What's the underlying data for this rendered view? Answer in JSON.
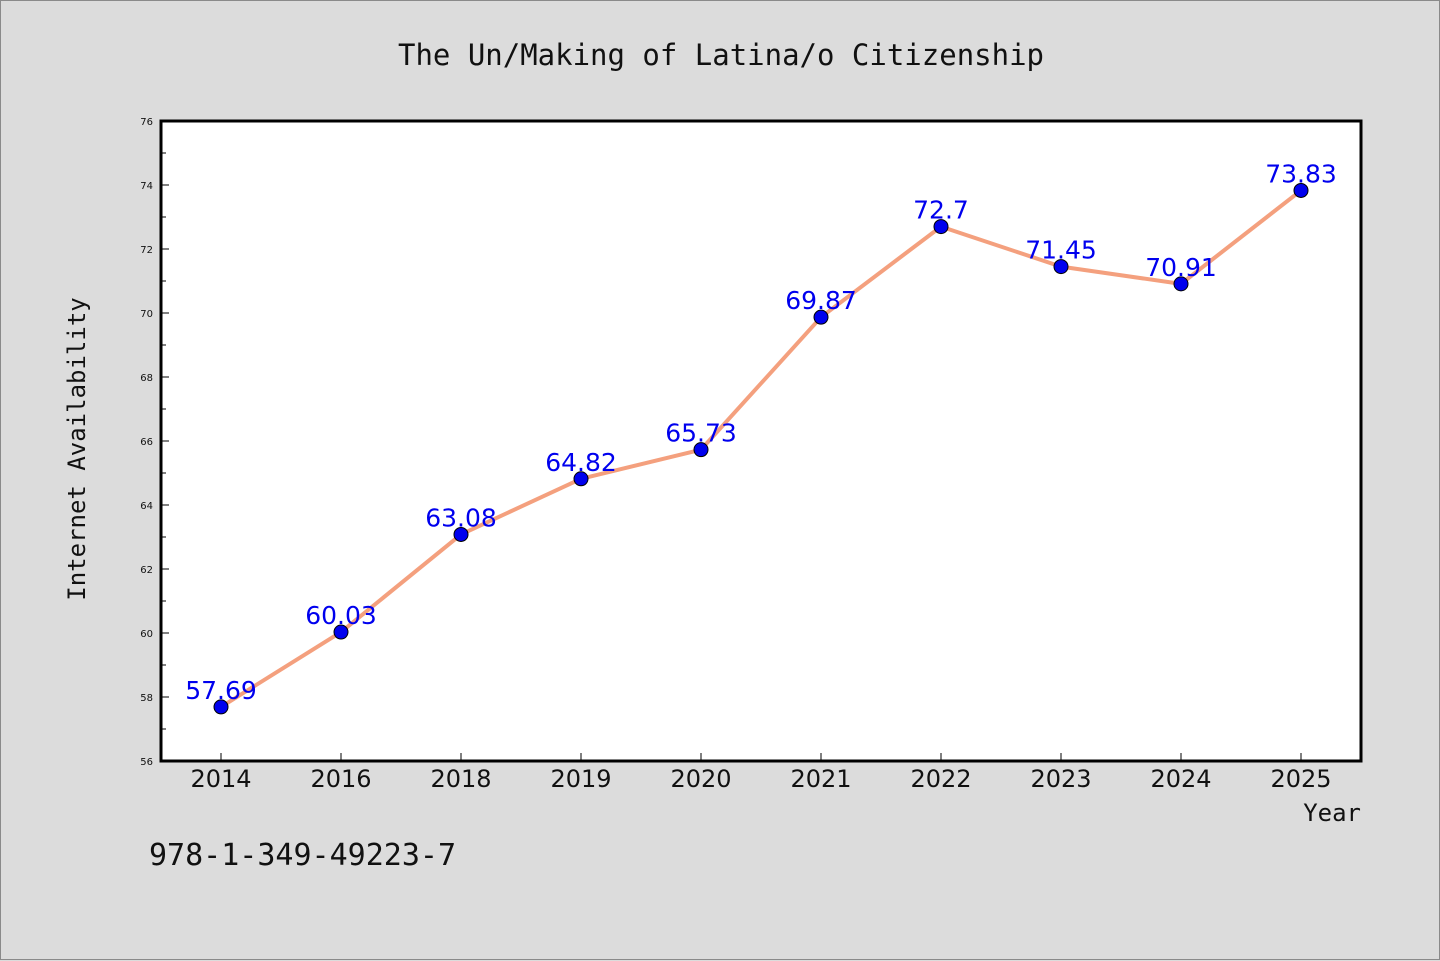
{
  "chart_data": {
    "type": "line",
    "title": "The Un/Making of Latina/o Citizenship",
    "xlabel": "Year",
    "ylabel": "Internet Availability",
    "categories": [
      "2014",
      "2016",
      "2018",
      "2019",
      "2020",
      "2021",
      "2022",
      "2023",
      "2024",
      "2025"
    ],
    "series": [
      {
        "values": [
          57.69,
          60.03,
          63.08,
          64.82,
          65.73,
          69.87,
          72.7,
          71.45,
          70.91,
          73.83
        ],
        "labels": [
          "57.69",
          "60.03",
          "63.08",
          "64.82",
          "65.73",
          "69.87",
          "72.7",
          "71.45",
          "70.91",
          "73.83"
        ],
        "line_color": "#f4a07e",
        "marker_color": "#0000ee"
      }
    ],
    "ylim": [
      56,
      76
    ],
    "yticks": [
      "56",
      "58",
      "60",
      "62",
      "64",
      "66",
      "68",
      "70",
      "72",
      "74",
      "76"
    ],
    "grid": false,
    "legend": false
  },
  "footer": {
    "isbn": "978-1-349-49223-7"
  },
  "colors": {
    "background": "#dcdcdc",
    "plot_bg": "#ffffff",
    "label_color": "#0000ee"
  }
}
